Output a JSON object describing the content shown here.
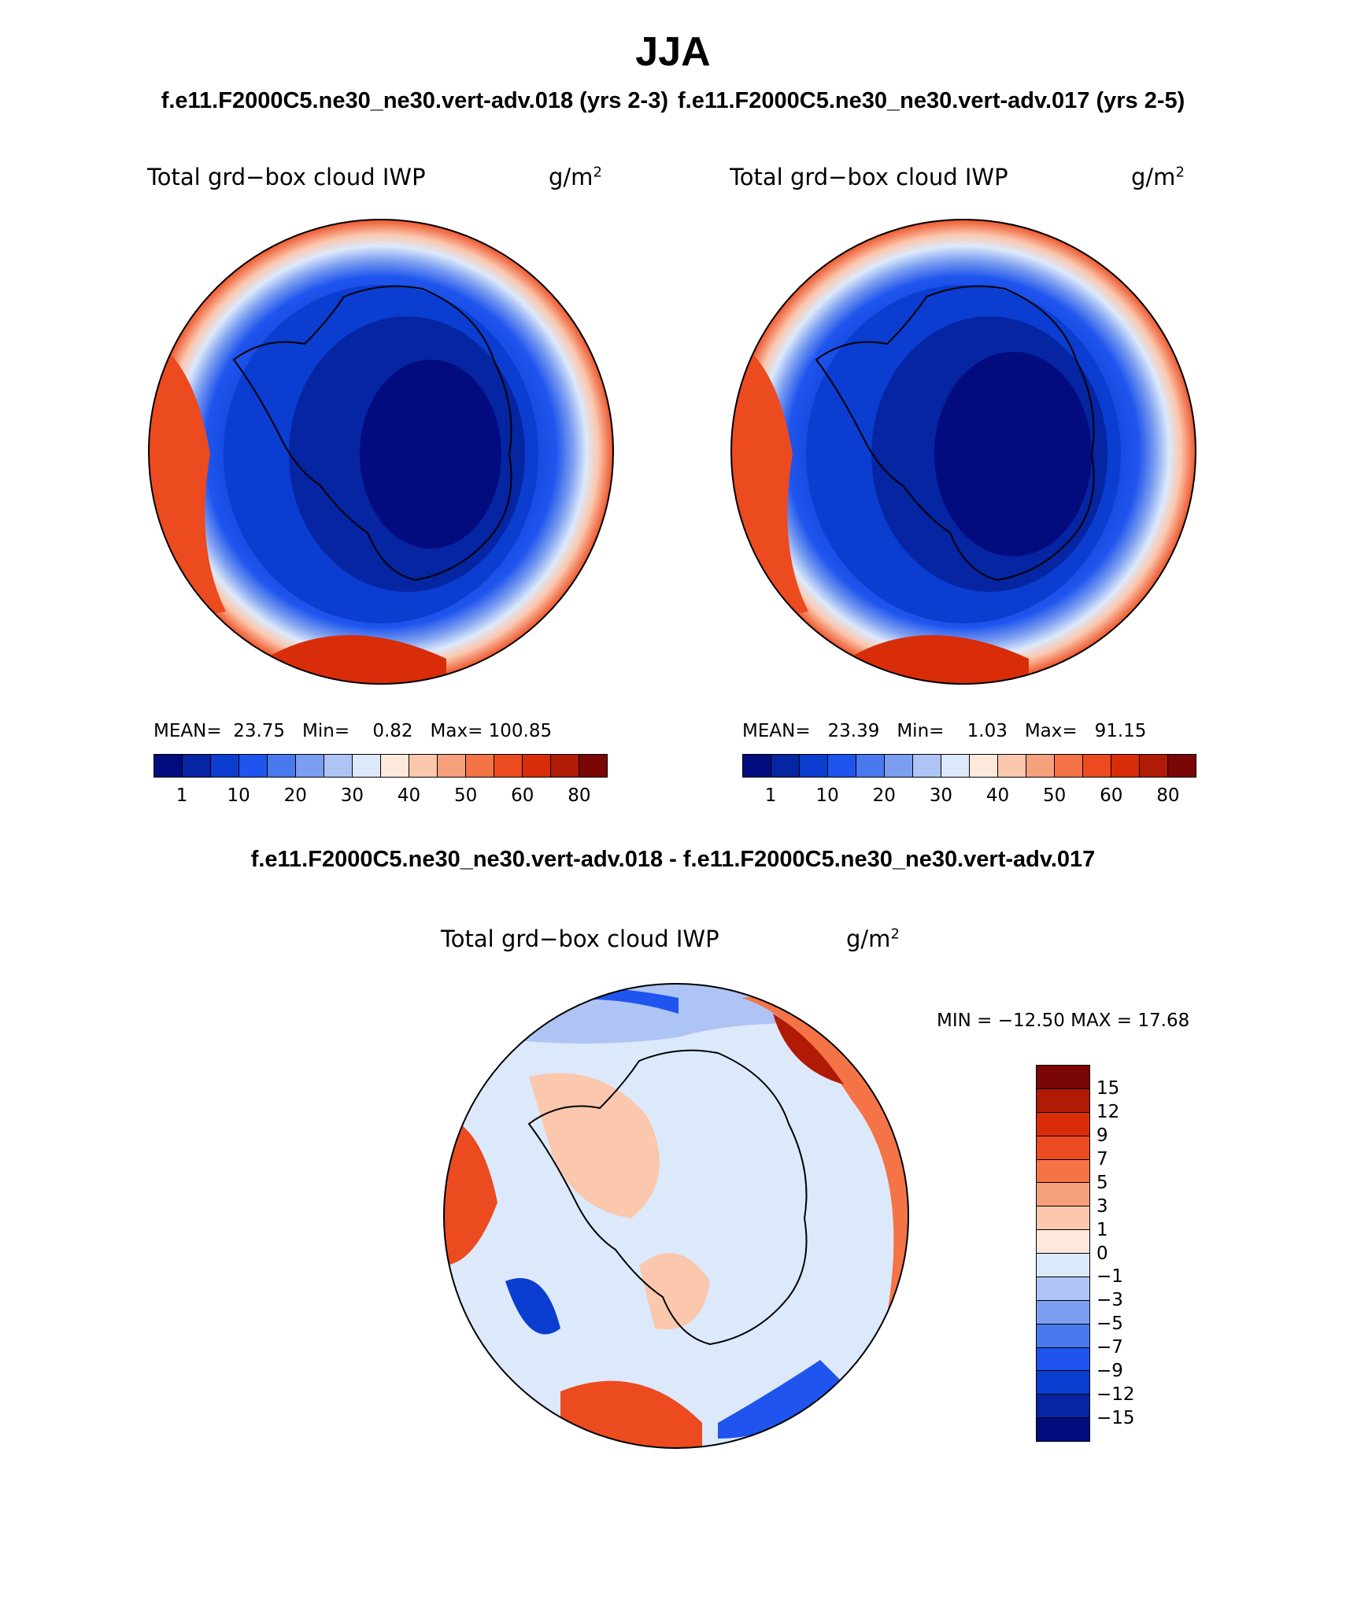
{
  "title": "JJA",
  "case1_title": "f.e11.F2000C5.ne30_ne30.vert-adv.018 (yrs 2-3)",
  "case2_title": "f.e11.F2000C5.ne30_ne30.vert-adv.017 (yrs 2-5)",
  "diff_title": "f.e11.F2000C5.ne30_ne30.vert-adv.018 - f.e11.F2000C5.ne30_ne30.vert-adv.017",
  "variable_label": "Total grd−box cloud IWP",
  "units_base": "g/m",
  "units_exp": "2",
  "panel1": {
    "mean_label": "MEAN=",
    "mean": "23.75",
    "min_label": "Min=",
    "min": "0.82",
    "max_label": "Max=",
    "max": "100.85"
  },
  "panel2": {
    "mean_label": "MEAN=",
    "mean": "23.39",
    "min_label": "Min=",
    "min": "1.03",
    "max_label": "Max=",
    "max": "91.15"
  },
  "panel3": {
    "minmax_text": "MIN = −12.50 MAX =   17.68"
  },
  "colorbar_ticks": [
    "1",
    "10",
    "20",
    "30",
    "40",
    "50",
    "60",
    "80"
  ],
  "colorbar_colors": [
    "#030c7e",
    "#0525a3",
    "#0a3dd0",
    "#1f55ee",
    "#4a78ee",
    "#7b9ef0",
    "#aec4f5",
    "#dce9fb",
    "#fde9dc",
    "#fbc7ad",
    "#f7a07c",
    "#f47347",
    "#ec4a1f",
    "#d92d0a",
    "#b11a05",
    "#7b0606"
  ],
  "diff_ticks": [
    "15",
    "12",
    "9",
    "7",
    "5",
    "3",
    "1",
    "0",
    "−1",
    "−3",
    "−5",
    "−7",
    "−9",
    "−12",
    "−15"
  ],
  "diff_colors": [
    "#7b0606",
    "#b11a05",
    "#d92d0a",
    "#ec4a1f",
    "#f47347",
    "#f7a07c",
    "#fbc7ad",
    "#fde9dc",
    "#dce9fb",
    "#aec4f5",
    "#7b9ef0",
    "#4a78ee",
    "#1f55ee",
    "#0a3dd0",
    "#0525a3",
    "#030c7e"
  ]
}
